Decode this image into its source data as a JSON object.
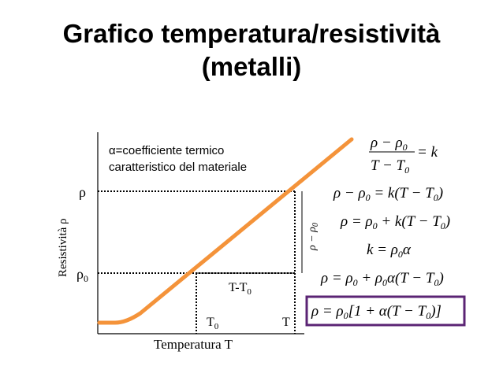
{
  "title": {
    "line1": "Grafico temperatura/resistività",
    "line2": "(metalli)"
  },
  "note": {
    "line1": "α=coefficiente termico",
    "line2": "caratteristico del materiale"
  },
  "axes": {
    "y_label": "Resistività ρ",
    "x_label": "Temperatura T",
    "y_tick_rho": "ρ",
    "y_tick_rho0": "ρ",
    "y_tick_rho0_sub": "0",
    "x_tick_T0": "T",
    "x_tick_T0_sub": "0",
    "x_tick_T": "T"
  },
  "annotations": {
    "delta_T": "T-T",
    "delta_T_sub": "0",
    "delta_rho": "ρ − ρ",
    "delta_rho_sub": "0"
  },
  "equations": {
    "eq1_num": "ρ − ρ",
    "eq1_num_sub": "0",
    "eq1_den": "T − T",
    "eq1_den_sub": "0",
    "eq1_rhs": "= k",
    "eq2": [
      "ρ − ρ",
      "0",
      " = k(T − T",
      "0",
      ")"
    ],
    "eq3": [
      "ρ = ρ",
      "0",
      " + k(T − T",
      "0",
      ")"
    ],
    "eq4": [
      "k = ρ",
      "0",
      "α"
    ],
    "eq5": [
      "ρ = ρ",
      "0",
      " + ρ",
      "0",
      "α(T − T",
      "0",
      ")"
    ],
    "eq6": [
      "ρ = ρ",
      "0",
      "[1 + α(T − T",
      "0",
      ")]"
    ]
  },
  "colors": {
    "curve": "#f4933a",
    "box_border": "#5b2474",
    "axis": "#000000"
  }
}
